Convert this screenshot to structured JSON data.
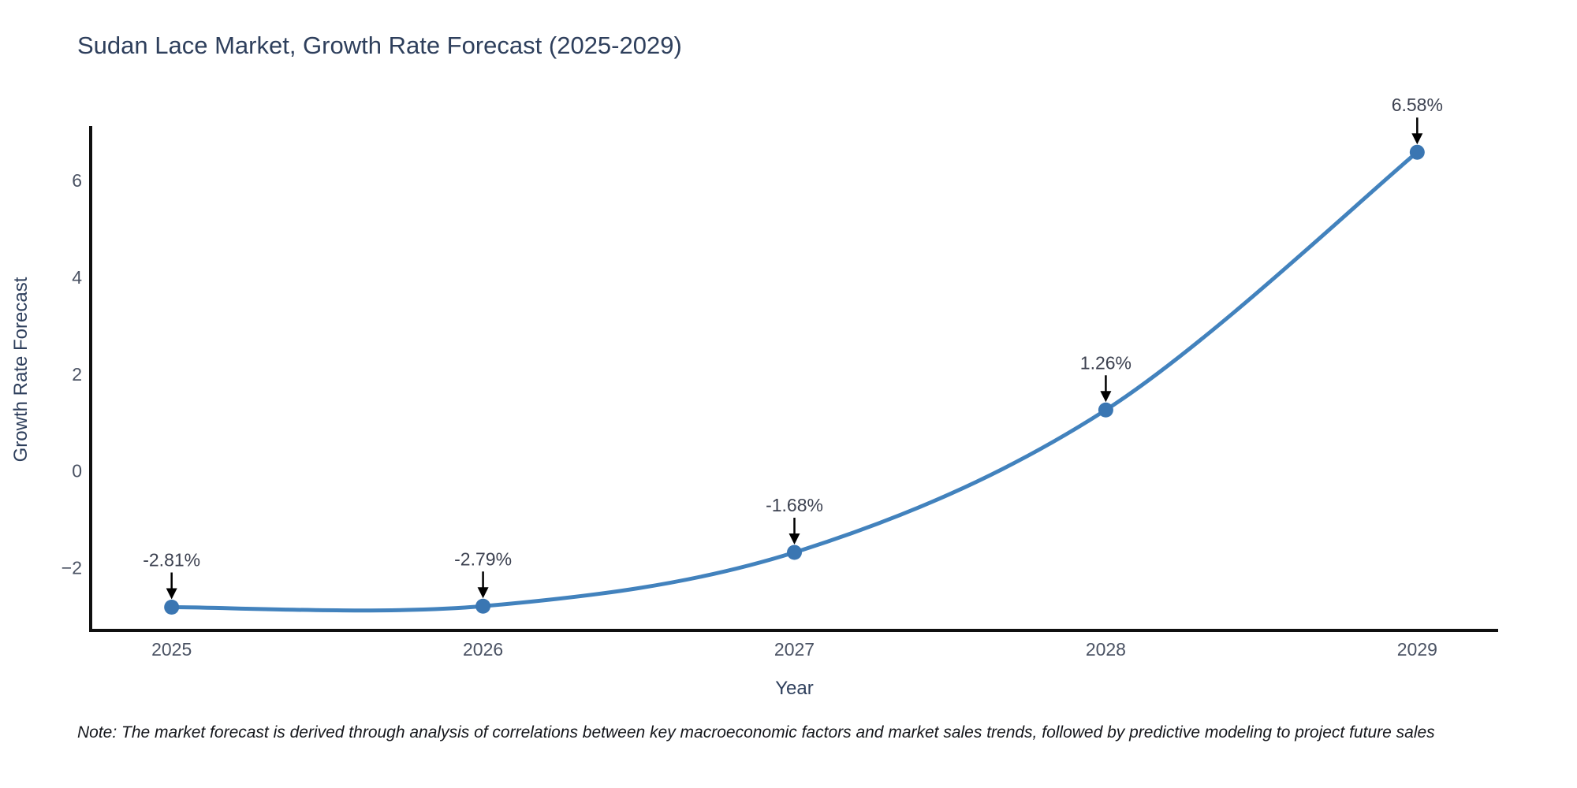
{
  "title": "Sudan Lace Market, Growth Rate Forecast (2025-2029)",
  "footnote": "Note: The market forecast is derived through analysis of correlations between key macroeconomic factors and market sales trends, followed by predictive modeling to project future sales",
  "chart_data": {
    "type": "line",
    "line_shape": "spline",
    "title": "Sudan Lace Market, Growth Rate Forecast (2025-2029)",
    "xlabel": "Year",
    "ylabel": "Growth Rate Forecast",
    "x": [
      2025,
      2026,
      2027,
      2028,
      2029
    ],
    "values": [
      -2.81,
      -2.79,
      -1.68,
      1.26,
      6.58
    ],
    "point_labels": [
      "-2.81%",
      "-2.79%",
      "-1.68%",
      "1.26%",
      "6.58%"
    ],
    "x_tick_labels": [
      "2025",
      "2026",
      "2027",
      "2028",
      "2029"
    ],
    "y_ticks": [
      -2,
      0,
      2,
      4,
      6
    ],
    "y_tick_labels": [
      "−2",
      "0",
      "2",
      "4",
      "6"
    ],
    "xlim": [
      2024.74,
      2029.26
    ],
    "ylim": [
      -3.29,
      7.12
    ],
    "grid": false,
    "legend": false,
    "annotations_arrow": "down",
    "colors": {
      "line": "#4282bd",
      "marker": "#3a76b2",
      "axis": "#101010",
      "annotation_text": "#3c4150",
      "arrow": "#000000",
      "tick_label": "#4a5263",
      "title": "#2e3f5c",
      "background": "#ffffff"
    }
  }
}
